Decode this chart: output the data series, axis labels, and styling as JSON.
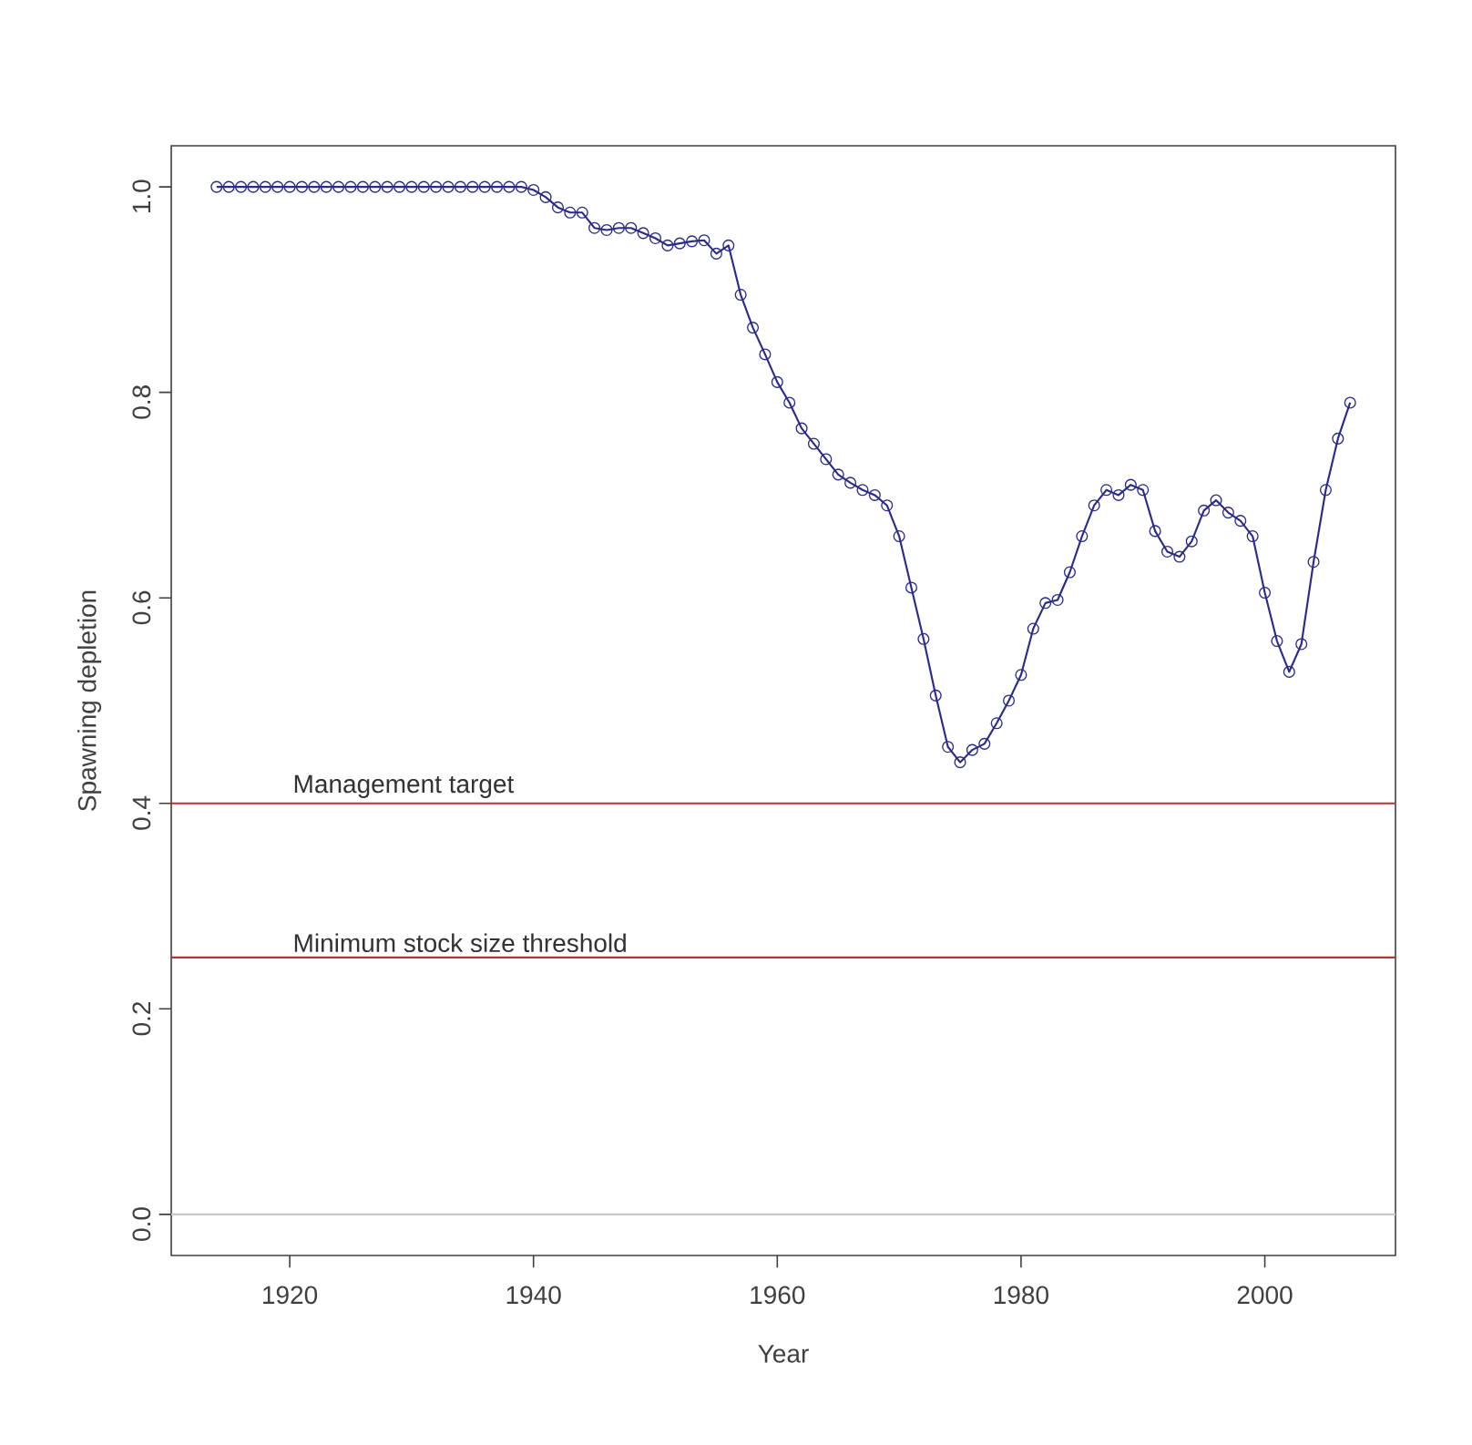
{
  "chart_data": {
    "type": "line",
    "xlabel": "Year",
    "ylabel": "Spawning depletion",
    "x": [
      1914,
      1915,
      1916,
      1917,
      1918,
      1919,
      1920,
      1921,
      1922,
      1923,
      1924,
      1925,
      1926,
      1927,
      1928,
      1929,
      1930,
      1931,
      1932,
      1933,
      1934,
      1935,
      1936,
      1937,
      1938,
      1939,
      1940,
      1941,
      1942,
      1943,
      1944,
      1945,
      1946,
      1947,
      1948,
      1949,
      1950,
      1951,
      1952,
      1953,
      1954,
      1955,
      1956,
      1957,
      1958,
      1959,
      1960,
      1961,
      1962,
      1963,
      1964,
      1965,
      1966,
      1967,
      1968,
      1969,
      1970,
      1971,
      1972,
      1973,
      1974,
      1975,
      1976,
      1977,
      1978,
      1979,
      1980,
      1981,
      1982,
      1983,
      1984,
      1985,
      1986,
      1987,
      1988,
      1989,
      1990,
      1991,
      1992,
      1993,
      1994,
      1995,
      1996,
      1997,
      1998,
      1999,
      2000,
      2001,
      2002,
      2003,
      2004,
      2005,
      2006,
      2007
    ],
    "series": [
      {
        "color": "#2b2b8c",
        "values": [
          1.0,
          1.0,
          1.0,
          1.0,
          1.0,
          1.0,
          1.0,
          1.0,
          1.0,
          1.0,
          1.0,
          1.0,
          1.0,
          1.0,
          1.0,
          1.0,
          1.0,
          1.0,
          1.0,
          1.0,
          1.0,
          1.0,
          1.0,
          1.0,
          1.0,
          1.0,
          0.997,
          0.99,
          0.98,
          0.975,
          0.975,
          0.96,
          0.958,
          0.96,
          0.96,
          0.955,
          0.95,
          0.943,
          0.945,
          0.947,
          0.948,
          0.935,
          0.943,
          0.895,
          0.863,
          0.837,
          0.81,
          0.79,
          0.765,
          0.75,
          0.735,
          0.72,
          0.712,
          0.705,
          0.7,
          0.69,
          0.66,
          0.61,
          0.56,
          0.505,
          0.455,
          0.44,
          0.452,
          0.458,
          0.478,
          0.5,
          0.525,
          0.57,
          0.595,
          0.598,
          0.625,
          0.66,
          0.69,
          0.705,
          0.7,
          0.71,
          0.705,
          0.665,
          0.645,
          0.64,
          0.655,
          0.685,
          0.695,
          0.683,
          0.675,
          0.66,
          0.605,
          0.558,
          0.528,
          0.555,
          0.635,
          0.705,
          0.755,
          0.79
        ]
      }
    ],
    "xlim": [
      1910.28,
      2010.72
    ],
    "ylim": [
      -0.04,
      1.04
    ],
    "xticks": [
      1920,
      1940,
      1960,
      1980,
      2000
    ],
    "yticks": [
      {
        "value": 0,
        "label": "0.0"
      },
      0.2,
      0.4,
      0.6,
      0.8,
      {
        "value": 1,
        "label": "1.0"
      }
    ],
    "marker": "circle",
    "line_style": "solid",
    "ref_lines": [
      {
        "axis": "y",
        "value": 0.4,
        "label": "Management target",
        "color": "#c03030"
      },
      {
        "axis": "y",
        "value": 0.25,
        "label": "Minimum stock size threshold",
        "color": "#c03030"
      },
      {
        "axis": "y",
        "value": 0,
        "color": "#c8c8c8"
      }
    ]
  }
}
